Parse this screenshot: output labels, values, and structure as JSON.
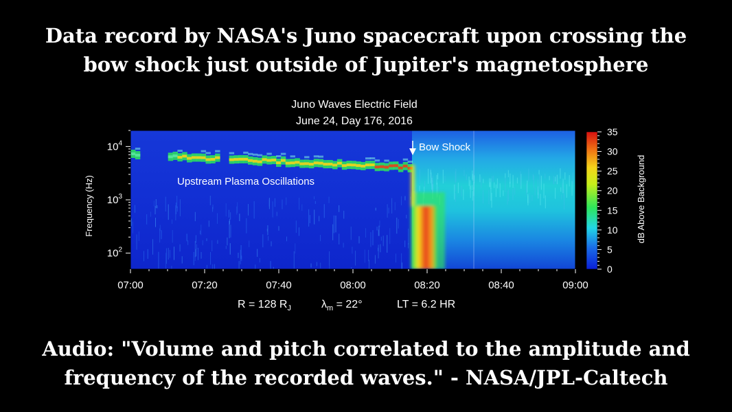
{
  "headline": {
    "line1": "Data record by NASA's Juno spacecraft upon crossing the",
    "line2": "bow shock just outside of Jupiter's magnetosphere"
  },
  "caption": {
    "line1": "Audio: \"Volume and pitch correlated to the amplitude and",
    "line2": "frequency of the recorded waves.\" - NASA/JPL-Caltech"
  },
  "footer": {
    "r_prefix": "R = 128 R",
    "r_sub": "J",
    "lambda_sym": "λ",
    "lambda_sub": "m",
    "lambda_val": " = 22°",
    "lt": "LT = 6.2 HR"
  },
  "colors": {
    "background": "#000000",
    "scale_low": "#0a1fd6",
    "scale_mid": "#22d6e6",
    "scale_green": "#2ee65a",
    "scale_yellow": "#f4f01a",
    "scale_red": "#e61c16"
  },
  "chart_data": {
    "type": "heatmap",
    "title": "Juno Waves Electric Field",
    "subtitle": "June 24, Day 176, 2016",
    "xlabel": "",
    "ylabel": "Frequency (Hz)",
    "y_scale": "log",
    "x_ticks": [
      "07:00",
      "07:20",
      "07:40",
      "08:00",
      "08:20",
      "08:40",
      "09:00"
    ],
    "y_ticks": [
      {
        "base": "10",
        "exp": "2",
        "value": 100
      },
      {
        "base": "10",
        "exp": "3",
        "value": 1000
      },
      {
        "base": "10",
        "exp": "4",
        "value": 10000
      }
    ],
    "xlim": [
      "07:00",
      "09:00"
    ],
    "ylim": [
      50,
      20000
    ],
    "colorbar": {
      "label": "dB Above Background",
      "ticks": [
        0,
        5,
        10,
        15,
        20,
        25,
        30,
        35
      ],
      "range": [
        0,
        35
      ]
    },
    "annotations": [
      {
        "text": "Upstream Plasma Oscillations",
        "time": "07:04",
        "frequency": 2000
      },
      {
        "text": "Bow Shock",
        "time": "08:16",
        "frequency": 10500,
        "arrow": true
      }
    ],
    "features": [
      {
        "name": "plasma_oscillation_band",
        "from": "07:00",
        "to": "08:16",
        "frequency_start": 7000,
        "frequency_end": 4000,
        "db": 15
      },
      {
        "name": "bow_shock",
        "time": "08:16",
        "db": 30
      },
      {
        "name": "post_shock_broadband",
        "from": "08:16",
        "to": "09:00",
        "frequency_range": [
          80,
          3000
        ],
        "db": 12
      }
    ]
  }
}
